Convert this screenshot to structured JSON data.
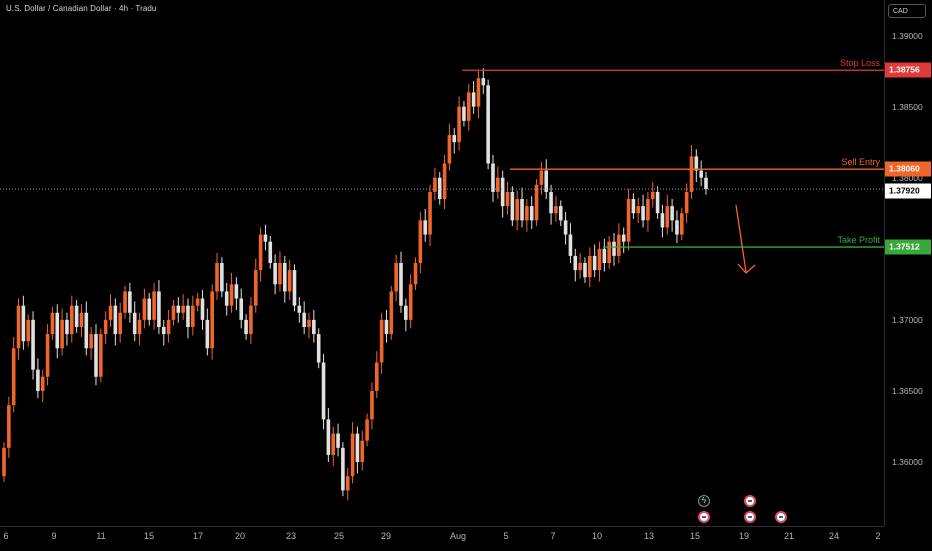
{
  "header": {
    "title": "U.S. Dollar / Canadian Dollar · 4h · Tradu",
    "currency": "CAD"
  },
  "colors": {
    "bull": "#f0652a",
    "bear": "#e0e0e0",
    "stop_loss": "#e03a3a",
    "sell_entry": "#f0652a",
    "take_profit": "#38a83b",
    "background": "#000000"
  },
  "y_axis": {
    "ticks": [
      "1.39000",
      "1.38500",
      "1.38000",
      "1.37500",
      "1.37000",
      "1.36500",
      "1.36000"
    ]
  },
  "x_axis": {
    "ticks": [
      "6",
      "9",
      "11",
      "15",
      "17",
      "20",
      "23",
      "25",
      "29",
      "Aug",
      "5",
      "7",
      "10",
      "13",
      "15",
      "19",
      "21",
      "24",
      "2"
    ]
  },
  "levels": {
    "stop_loss": {
      "label": "Stop Loss",
      "price": "1.38756"
    },
    "sell_entry": {
      "label": "Sell Entry",
      "price": "1.38060"
    },
    "take_profit": {
      "label": "Take Profit",
      "price": "1.37512"
    },
    "current": {
      "price": "1.37920"
    }
  },
  "chart_data": {
    "type": "candlestick",
    "title": "U.S. Dollar / Canadian Dollar · 4h · Tradu",
    "ylim": [
      1.3555,
      1.3925
    ],
    "y_ticks": [
      1.39,
      1.385,
      1.38,
      1.375,
      1.37,
      1.365,
      1.36
    ],
    "x_tick_labels": [
      "6",
      "9",
      "11",
      "15",
      "17",
      "20",
      "23",
      "25",
      "29",
      "Aug",
      "5",
      "7",
      "10",
      "13",
      "15",
      "19",
      "21",
      "24",
      "2"
    ],
    "stop_loss": 1.38756,
    "sell_entry": 1.3806,
    "take_profit": 1.37512,
    "last_price": 1.3792,
    "closes": [
      1.361,
      1.364,
      1.368,
      1.371,
      1.3685,
      1.37,
      1.3665,
      1.365,
      1.366,
      1.369,
      1.3705,
      1.368,
      1.37,
      1.369,
      1.371,
      1.3695,
      1.3705,
      1.368,
      1.369,
      1.366,
      1.369,
      1.37,
      1.371,
      1.369,
      1.3705,
      1.372,
      1.3705,
      1.369,
      1.37,
      1.3715,
      1.37,
      1.372,
      1.3695,
      1.369,
      1.37,
      1.371,
      1.3705,
      1.371,
      1.3695,
      1.371,
      1.3715,
      1.37,
      1.368,
      1.372,
      1.374,
      1.372,
      1.371,
      1.3725,
      1.3715,
      1.37,
      1.369,
      1.371,
      1.3735,
      1.376,
      1.3755,
      1.374,
      1.3725,
      1.374,
      1.372,
      1.3735,
      1.371,
      1.3705,
      1.3695,
      1.37,
      1.369,
      1.367,
      1.363,
      1.3605,
      1.362,
      1.361,
      1.358,
      1.359,
      1.362,
      1.36,
      1.3615,
      1.363,
      1.365,
      1.367,
      1.37,
      1.369,
      1.372,
      1.374,
      1.371,
      1.37,
      1.3725,
      1.374,
      1.377,
      1.376,
      1.379,
      1.38,
      1.3785,
      1.381,
      1.383,
      1.3825,
      1.385,
      1.384,
      1.386,
      1.385,
      1.387,
      1.3865,
      1.381,
      1.379,
      1.38,
      1.378,
      1.379,
      1.377,
      1.3785,
      1.377,
      1.378,
      1.377,
      1.3795,
      1.3805,
      1.379,
      1.3775,
      1.378,
      1.377,
      1.376,
      1.3745,
      1.3735,
      1.374,
      1.373,
      1.3745,
      1.3735,
      1.375,
      1.374,
      1.3755,
      1.3745,
      1.376,
      1.3755,
      1.3785,
      1.3775,
      1.378,
      1.377,
      1.3785,
      1.379,
      1.3775,
      1.3765,
      1.378,
      1.377,
      1.376,
      1.3775,
      1.379,
      1.3815,
      1.3805,
      1.38,
      1.3792
    ]
  }
}
